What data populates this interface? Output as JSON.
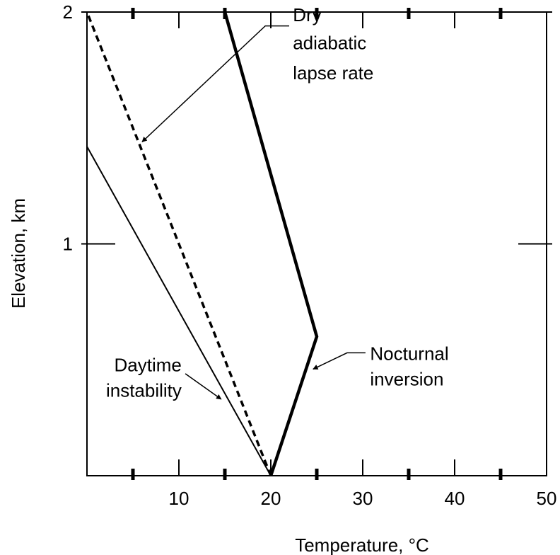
{
  "chart_data": {
    "type": "line",
    "title": "",
    "xlabel": "Temperature, °C",
    "ylabel": "Elevation, km",
    "xlim": [
      0,
      50
    ],
    "ylim": [
      0,
      2
    ],
    "x_ticks": [
      10,
      20,
      30,
      40,
      50
    ],
    "x_tick_labels": [
      "10",
      "20",
      "30",
      "40",
      "50"
    ],
    "x_minor_ticks": [
      5,
      15,
      25,
      35,
      45
    ],
    "y_ticks": [
      1,
      2
    ],
    "y_tick_labels": [
      "1",
      "2"
    ],
    "grid": false,
    "series": [
      {
        "id": "dry-adiabatic",
        "style": "dashed",
        "color": "#000000",
        "points": [
          [
            20,
            0
          ],
          [
            0,
            2
          ]
        ]
      },
      {
        "id": "daytime-instability",
        "style": "solid-thin",
        "color": "#000000",
        "points": [
          [
            20,
            0
          ],
          [
            0,
            1.42
          ]
        ]
      },
      {
        "id": "nocturnal-inversion",
        "style": "solid-thick",
        "color": "#000000",
        "points": [
          [
            20,
            0
          ],
          [
            25,
            0.6
          ],
          [
            15,
            2
          ]
        ]
      }
    ],
    "annotations": [
      {
        "id": "dry-adiabatic",
        "lines": [
          "Dry",
          "adiabatic",
          "lapse rate"
        ],
        "anchor": "start",
        "label_x": 22.4,
        "label_y_lines": [
          1.96,
          1.84,
          1.71
        ],
        "arrow_path": [
          [
            22.0,
            1.94
          ],
          [
            19.4,
            1.94
          ],
          [
            6.0,
            1.44
          ]
        ]
      },
      {
        "id": "nocturnal-inversion",
        "lines": [
          "Nocturnal",
          "inversion"
        ],
        "anchor": "start",
        "label_x": 30.8,
        "label_y_lines": [
          0.5,
          0.39
        ],
        "arrow_path": [
          [
            30.3,
            0.53
          ],
          [
            28.3,
            0.53
          ],
          [
            24.6,
            0.46
          ]
        ]
      },
      {
        "id": "daytime-instability",
        "lines": [
          "Daytime",
          "instability"
        ],
        "anchor": "end",
        "label_x": 10.3,
        "label_y_lines": [
          0.45,
          0.34
        ],
        "arrow_path": [
          [
            10.7,
            0.44
          ],
          [
            14.6,
            0.33
          ]
        ]
      }
    ]
  }
}
